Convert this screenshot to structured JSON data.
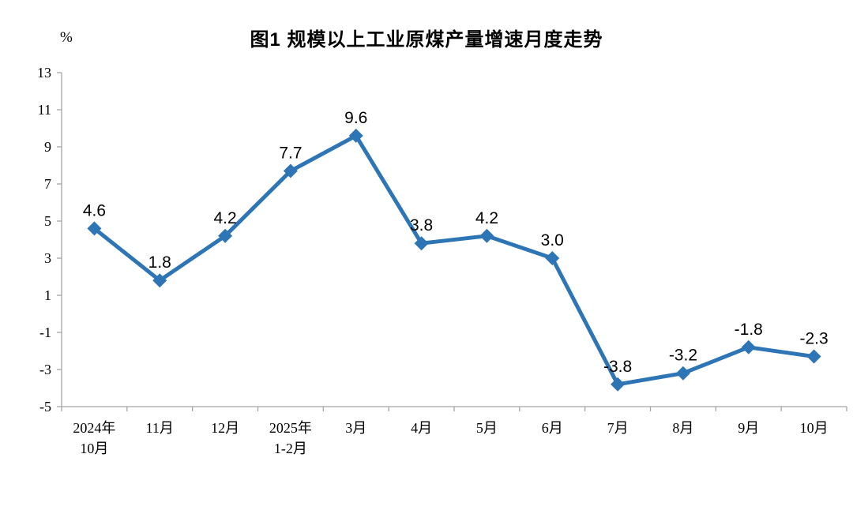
{
  "chart_data": {
    "type": "line",
    "title": "图1  规模以上工业原煤产量增速月度走势",
    "unit": "%",
    "categories": [
      "2024年\n10月",
      "11月",
      "12月",
      "2025年\n1-2月",
      "3月",
      "4月",
      "5月",
      "6月",
      "7月",
      "8月",
      "9月",
      "10月"
    ],
    "values": [
      4.6,
      1.8,
      4.2,
      7.7,
      9.6,
      3.8,
      4.2,
      3.0,
      -3.8,
      -3.2,
      -1.8,
      -2.3
    ],
    "data_labels": [
      "4.6",
      "1.8",
      "4.2",
      "7.7",
      "9.6",
      "3.8",
      "4.2",
      "3.0",
      "-3.8",
      "-3.2",
      "-1.8",
      "-2.3"
    ],
    "ylim": [
      -5,
      13
    ],
    "ytick_step": 2,
    "ytick_labels": [
      "-5",
      "-3",
      "-1",
      "1",
      "3",
      "5",
      "7",
      "9",
      "11",
      "13"
    ],
    "grid": false,
    "legend": "none",
    "line_color": "#2E75B6",
    "marker": "diamond",
    "axis_color": "#A6A6A6",
    "text_color": "#000000"
  }
}
